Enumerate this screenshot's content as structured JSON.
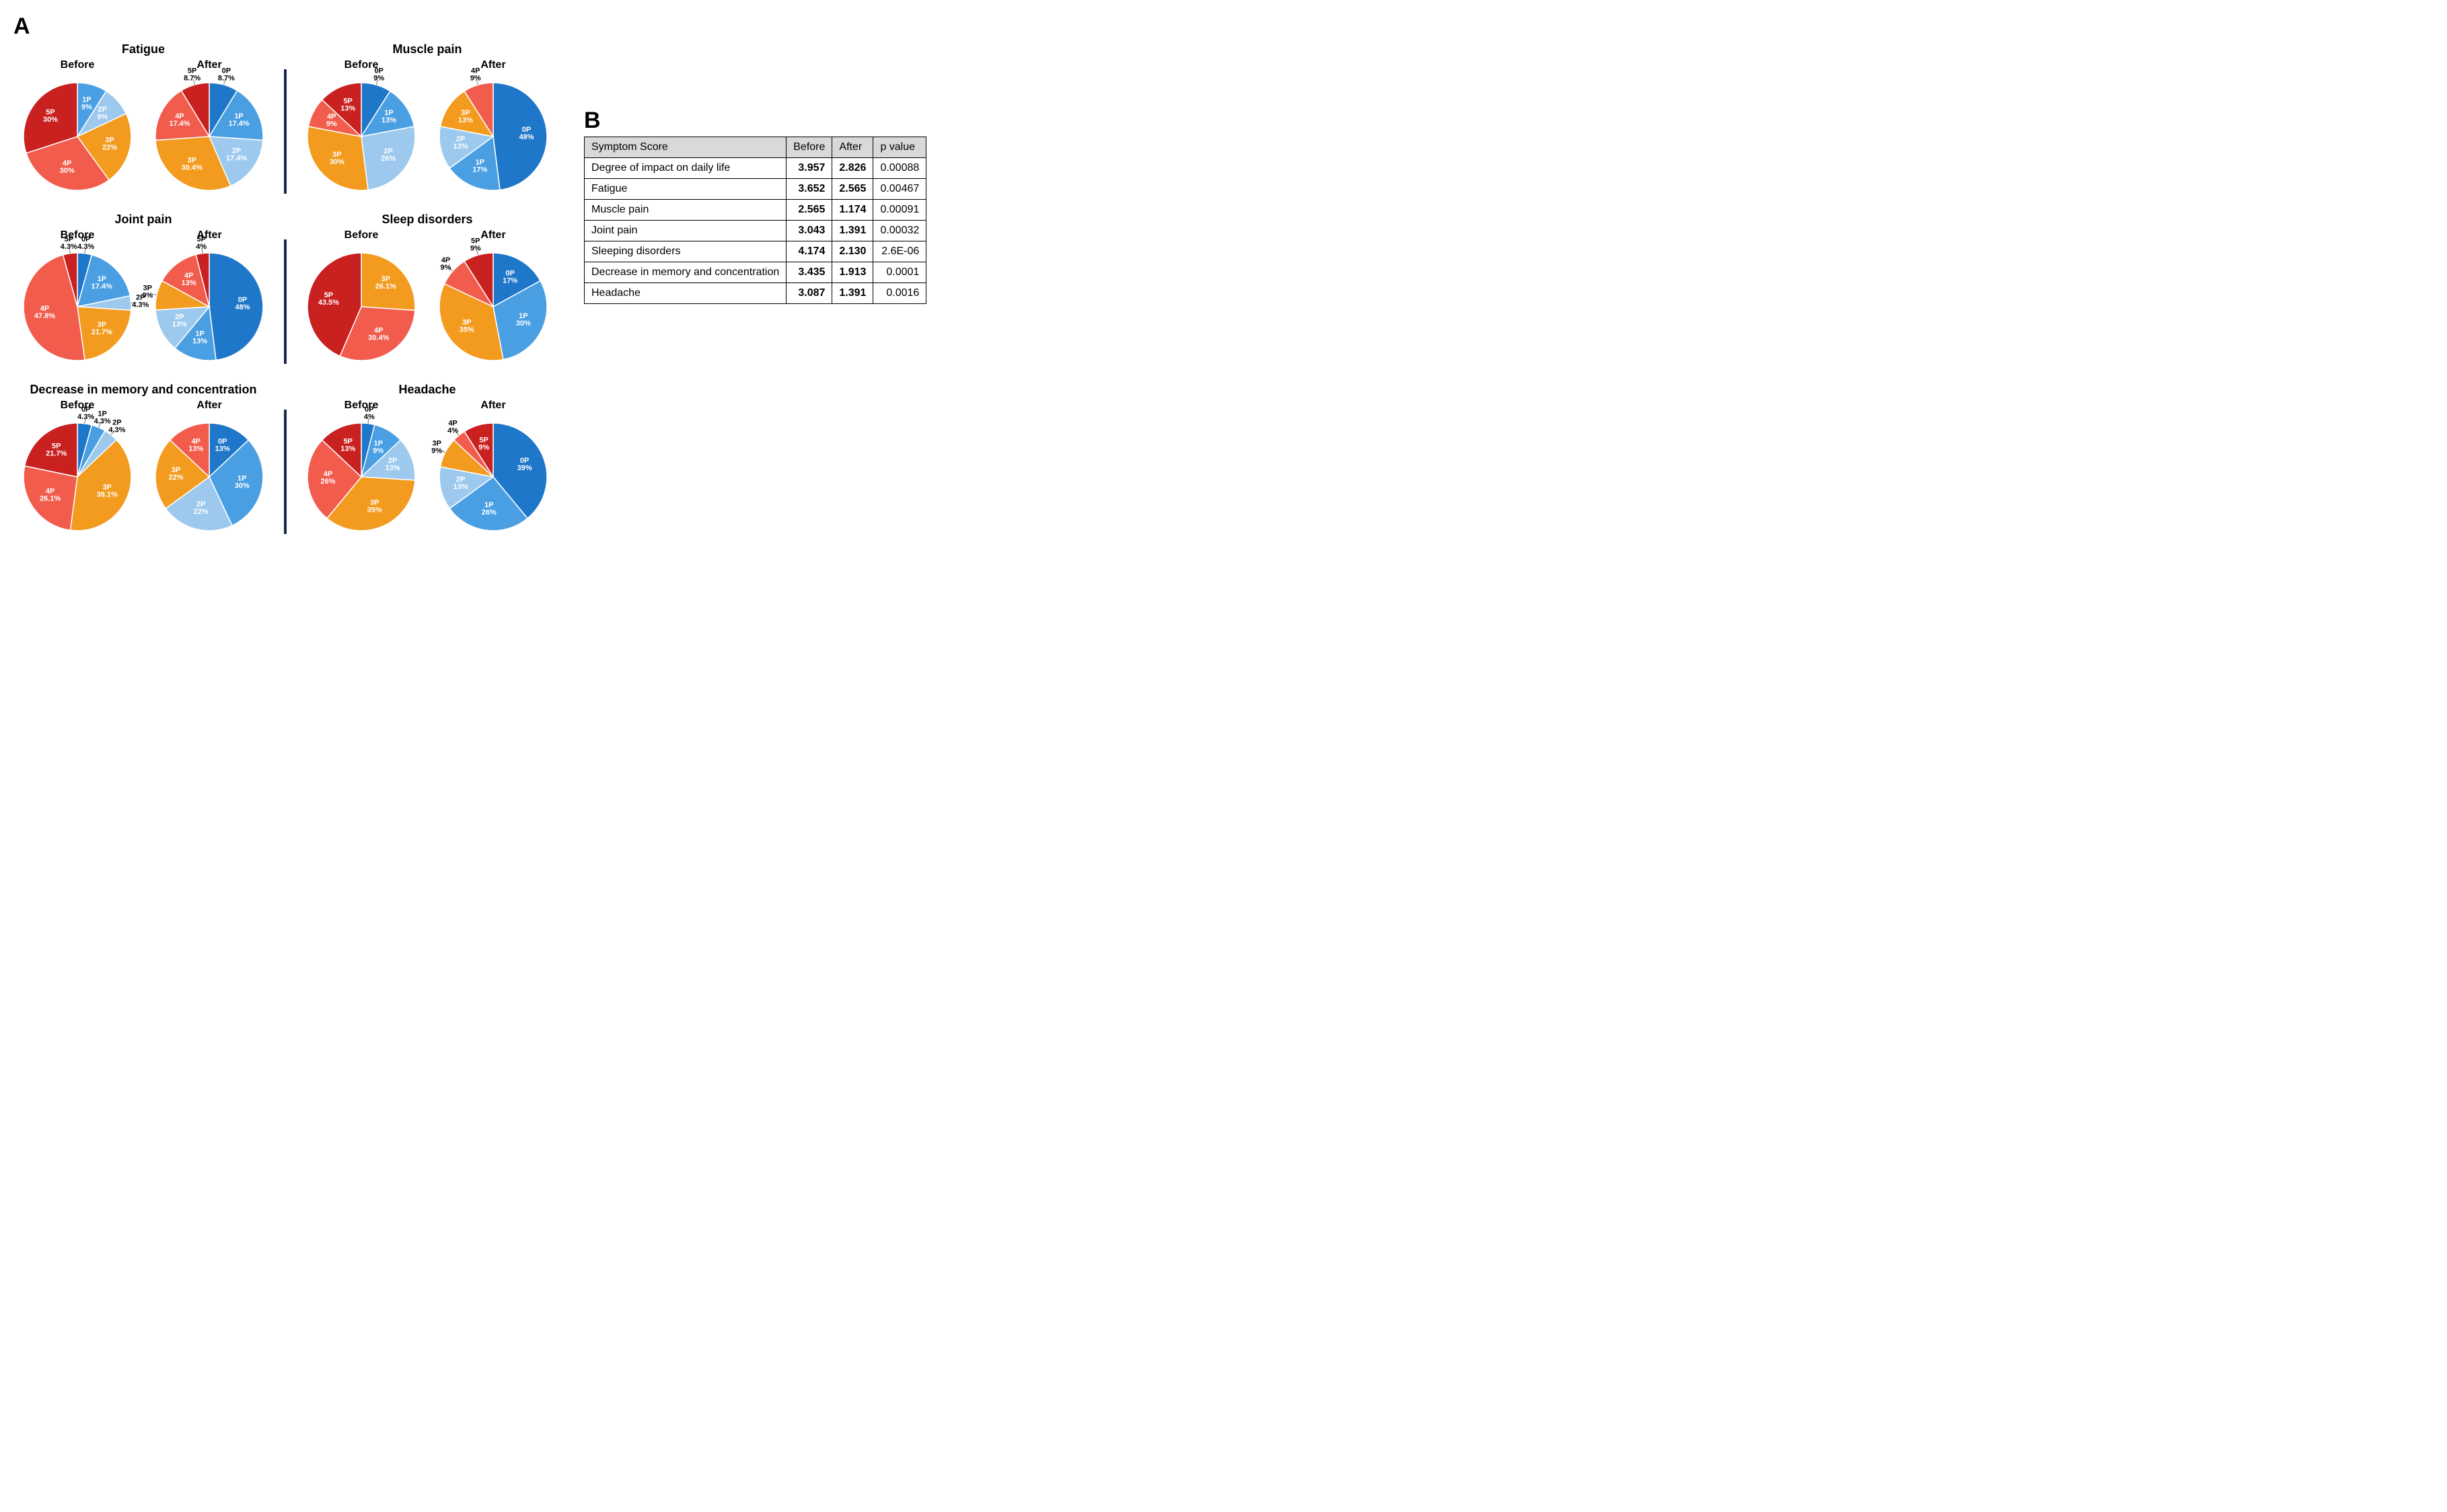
{
  "panelA_letter": "A",
  "panelB_letter": "B",
  "before_label": "Before",
  "after_label": "After",
  "palette": {
    "0P": "#1f77c9",
    "1P": "#4a9fe3",
    "2P": "#9cc9ed",
    "3P": "#f39b1f",
    "4P": "#f25c4d",
    "5P": "#c92020"
  },
  "pie_style": {
    "radius": 80,
    "stroke": "#ffffff",
    "stroke_width": 1.5,
    "label_fontsize": 11,
    "label_color_inside": "#ffffff",
    "label_color_outside": "#000000"
  },
  "groups": [
    {
      "title": "Fatigue",
      "before": [
        {
          "label": "1P",
          "pct": "9%",
          "value": 9,
          "outside": false
        },
        {
          "label": "2P",
          "pct": "9%",
          "value": 9,
          "outside": false
        },
        {
          "label": "3P",
          "pct": "22%",
          "value": 22,
          "outside": false
        },
        {
          "label": "4P",
          "pct": "30%",
          "value": 30,
          "outside": false
        },
        {
          "label": "5P",
          "pct": "30%",
          "value": 30,
          "outside": false
        }
      ],
      "after": [
        {
          "label": "0P",
          "pct": "8.7%",
          "value": 8.7,
          "outside": true
        },
        {
          "label": "1P",
          "pct": "17.4%",
          "value": 17.4,
          "outside": false
        },
        {
          "label": "2P",
          "pct": "17.4%",
          "value": 17.4,
          "outside": false
        },
        {
          "label": "3P",
          "pct": "30.4%",
          "value": 30.4,
          "outside": false
        },
        {
          "label": "4P",
          "pct": "17.4%",
          "value": 17.4,
          "outside": false
        },
        {
          "label": "5P",
          "pct": "8.7%",
          "value": 8.7,
          "outside": true
        }
      ]
    },
    {
      "title": "Muscle pain",
      "before": [
        {
          "label": "0P",
          "pct": "9%",
          "value": 9,
          "outside": true
        },
        {
          "label": "1P",
          "pct": "13%",
          "value": 13,
          "outside": false
        },
        {
          "label": "2P",
          "pct": "26%",
          "value": 26,
          "outside": false
        },
        {
          "label": "3P",
          "pct": "30%",
          "value": 30,
          "outside": false
        },
        {
          "label": "4P",
          "pct": "9%",
          "value": 9,
          "outside": false
        },
        {
          "label": "5P",
          "pct": "13%",
          "value": 13,
          "outside": false
        }
      ],
      "after": [
        {
          "label": "0P",
          "pct": "48%",
          "value": 48,
          "outside": false
        },
        {
          "label": "1P",
          "pct": "17%",
          "value": 17,
          "outside": false
        },
        {
          "label": "2P",
          "pct": "13%",
          "value": 13,
          "outside": false
        },
        {
          "label": "3P",
          "pct": "13%",
          "value": 13,
          "outside": false
        },
        {
          "label": "4P",
          "pct": "9%",
          "value": 9,
          "outside": true
        }
      ]
    },
    {
      "title": "Joint pain",
      "before": [
        {
          "label": "0P",
          "pct": "4.3%",
          "value": 4.3,
          "outside": true
        },
        {
          "label": "1P",
          "pct": "17.4%",
          "value": 17.4,
          "outside": false
        },
        {
          "label": "2P",
          "pct": "4.3%",
          "value": 4.3,
          "outside": true
        },
        {
          "label": "3P",
          "pct": "21.7%",
          "value": 21.7,
          "outside": false
        },
        {
          "label": "4P",
          "pct": "47.8%",
          "value": 47.8,
          "outside": false
        },
        {
          "label": "5P",
          "pct": "4.3%",
          "value": 4.3,
          "outside": true
        }
      ],
      "after": [
        {
          "label": "0P",
          "pct": "48%",
          "value": 48,
          "outside": false
        },
        {
          "label": "1P",
          "pct": "13%",
          "value": 13,
          "outside": false
        },
        {
          "label": "2P",
          "pct": "13%",
          "value": 13,
          "outside": false
        },
        {
          "label": "3P",
          "pct": "9%",
          "value": 9,
          "outside": true
        },
        {
          "label": "4P",
          "pct": "13%",
          "value": 13,
          "outside": false
        },
        {
          "label": "5P",
          "pct": "4%",
          "value": 4,
          "outside": true
        }
      ]
    },
    {
      "title": "Sleep disorders",
      "before": [
        {
          "label": "3P",
          "pct": "26.1%",
          "value": 26.1,
          "outside": false
        },
        {
          "label": "4P",
          "pct": "30.4%",
          "value": 30.4,
          "outside": false
        },
        {
          "label": "5P",
          "pct": "43.5%",
          "value": 43.5,
          "outside": false
        }
      ],
      "after": [
        {
          "label": "0P",
          "pct": "17%",
          "value": 17,
          "outside": false
        },
        {
          "label": "1P",
          "pct": "30%",
          "value": 30,
          "outside": false
        },
        {
          "label": "3P",
          "pct": "35%",
          "value": 35,
          "outside": false
        },
        {
          "label": "4P",
          "pct": "9%",
          "value": 9,
          "outside": true
        },
        {
          "label": "5P",
          "pct": "9%",
          "value": 9,
          "outside": true
        }
      ]
    },
    {
      "title": "Decrease in memory  and concentration",
      "before": [
        {
          "label": "0P",
          "pct": "4.3%",
          "value": 4.3,
          "outside": true
        },
        {
          "label": "1P",
          "pct": "4.3%",
          "value": 4.3,
          "outside": true
        },
        {
          "label": "2P",
          "pct": "4.3%",
          "value": 4.3,
          "outside": true
        },
        {
          "label": "3P",
          "pct": "39.1%",
          "value": 39.1,
          "outside": false
        },
        {
          "label": "4P",
          "pct": "26.1%",
          "value": 26.1,
          "outside": false
        },
        {
          "label": "5P",
          "pct": "21.7%",
          "value": 21.7,
          "outside": false
        }
      ],
      "after": [
        {
          "label": "0P",
          "pct": "13%",
          "value": 13,
          "outside": false
        },
        {
          "label": "1P",
          "pct": "30%",
          "value": 30,
          "outside": false
        },
        {
          "label": "2P",
          "pct": "22%",
          "value": 22,
          "outside": false
        },
        {
          "label": "3P",
          "pct": "22%",
          "value": 22,
          "outside": false
        },
        {
          "label": "4P",
          "pct": "13%",
          "value": 13,
          "outside": false
        }
      ]
    },
    {
      "title": "Headache",
      "before": [
        {
          "label": "0P",
          "pct": "4%",
          "value": 4,
          "outside": true
        },
        {
          "label": "1P",
          "pct": "9%",
          "value": 9,
          "outside": false
        },
        {
          "label": "2P",
          "pct": "13%",
          "value": 13,
          "outside": false
        },
        {
          "label": "3P",
          "pct": "35%",
          "value": 35,
          "outside": false
        },
        {
          "label": "4P",
          "pct": "26%",
          "value": 26,
          "outside": false
        },
        {
          "label": "5P",
          "pct": "13%",
          "value": 13,
          "outside": false
        }
      ],
      "after": [
        {
          "label": "0P",
          "pct": "39%",
          "value": 39,
          "outside": false
        },
        {
          "label": "1P",
          "pct": "26%",
          "value": 26,
          "outside": false
        },
        {
          "label": "2P",
          "pct": "13%",
          "value": 13,
          "outside": false
        },
        {
          "label": "3P",
          "pct": "9%",
          "value": 9,
          "outside": true
        },
        {
          "label": "4P",
          "pct": "4%",
          "value": 4,
          "outside": true
        },
        {
          "label": "5P",
          "pct": "9%",
          "value": 9,
          "outside": false
        }
      ]
    }
  ],
  "table": {
    "columns": [
      "Symptom Score",
      "Before",
      "After",
      "p value"
    ],
    "rows": [
      [
        "Degree of impact on daily life",
        "3.957",
        "2.826",
        "0.00088"
      ],
      [
        "Fatigue",
        "3.652",
        "2.565",
        "0.00467"
      ],
      [
        "Muscle pain",
        "2.565",
        "1.174",
        "0.00091"
      ],
      [
        "Joint pain",
        "3.043",
        "1.391",
        "0.00032"
      ],
      [
        "Sleeping disorders",
        "4.174",
        "2.130",
        "2.6E-06"
      ],
      [
        "Decrease in memory and concentration",
        "3.435",
        "1.913",
        "0.0001"
      ],
      [
        "Headache",
        "3.087",
        "1.391",
        "0.0016"
      ]
    ]
  }
}
